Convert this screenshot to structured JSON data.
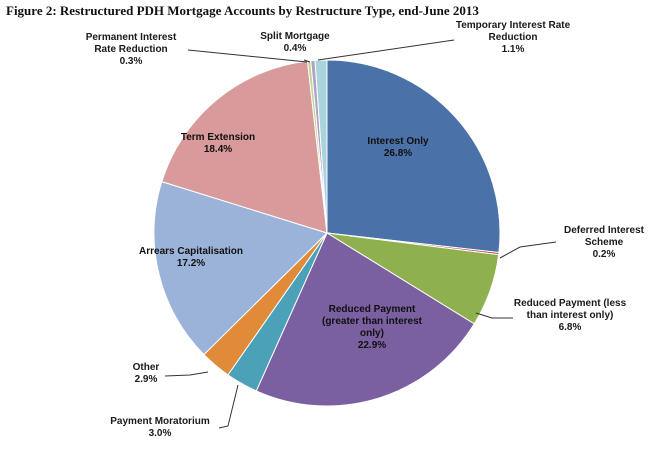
{
  "chart_data": {
    "type": "pie",
    "title": "Figure 2: Restructured PDH Mortgage Accounts by Restructure Type, end-June 2013",
    "start_angle_deg": 0,
    "direction": "clockwise",
    "slices": [
      {
        "name": "Interest Only",
        "value": 26.8,
        "value_label": "26.8%",
        "color": "#4a72a8"
      },
      {
        "name": "Deferred Interest Scheme",
        "value": 0.2,
        "value_label": "0.2%",
        "color": "#c0504d"
      },
      {
        "name": "Reduced Payment (less than interest only)",
        "value": 6.8,
        "value_label": "6.8%",
        "color": "#8fb04f"
      },
      {
        "name": "Reduced Payment (greater than interest only)",
        "value": 22.9,
        "value_label": "22.9%",
        "color": "#7a5fa1"
      },
      {
        "name": "Payment Moratorium",
        "value": 3.0,
        "value_label": "3.0%",
        "color": "#4ba1b7"
      },
      {
        "name": "Other",
        "value": 2.9,
        "value_label": "2.9%",
        "color": "#e08b3a"
      },
      {
        "name": "Arrears Capitalisation",
        "value": 17.2,
        "value_label": "17.2%",
        "color": "#9bb3d8"
      },
      {
        "name": "Term Extension",
        "value": 18.4,
        "value_label": "18.4%",
        "color": "#d89a9a"
      },
      {
        "name": "Permanent Interest Rate Reduction",
        "value": 0.3,
        "value_label": "0.3%",
        "color": "#c2d48e"
      },
      {
        "name": "Split Mortgage",
        "value": 0.4,
        "value_label": "0.4%",
        "color": "#b0a3c8"
      },
      {
        "name": "Temporary Interest Rate Reduction",
        "value": 1.1,
        "value_label": "1.1%",
        "color": "#a9d3de"
      }
    ],
    "labels": [
      {
        "lines": [
          "Interest Only",
          "26.8%"
        ]
      },
      {
        "lines": [
          "Deferred Interest",
          "Scheme",
          "0.2%"
        ]
      },
      {
        "lines": [
          "Reduced Payment (less",
          "than interest only)",
          "6.8%"
        ]
      },
      {
        "lines": [
          "Reduced Payment",
          "(greater than interest",
          "only)",
          "22.9%"
        ]
      },
      {
        "lines": [
          "Payment Moratorium",
          "3.0%"
        ]
      },
      {
        "lines": [
          "Other",
          "2.9%"
        ]
      },
      {
        "lines": [
          "Arrears Capitalisation",
          "17.2%"
        ]
      },
      {
        "lines": [
          "Term Extension",
          "18.4%"
        ]
      },
      {
        "lines": [
          "Permanent Interest",
          "Rate Reduction",
          "0.3%"
        ]
      },
      {
        "lines": [
          "Split Mortgage",
          "0.4%"
        ]
      },
      {
        "lines": [
          "Temporary Interest Rate",
          "Reduction",
          "1.1%"
        ]
      }
    ]
  }
}
